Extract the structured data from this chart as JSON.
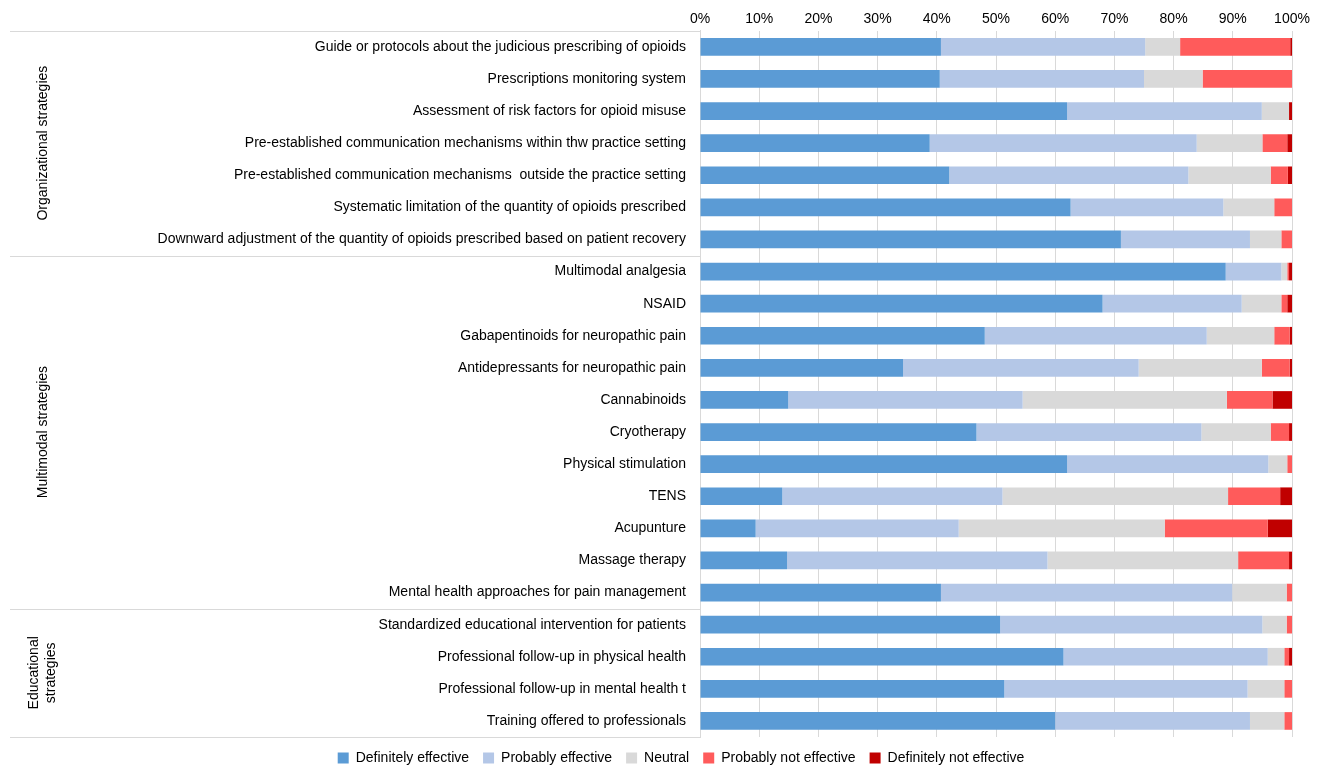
{
  "chart_data": {
    "type": "bar",
    "orientation": "horizontal",
    "stacked": true,
    "categories": [
      "Guide or protocols about the judicious prescribing of opioids",
      "Prescriptions monitoring system",
      "Assessment of risk factors for opioid misuse",
      "Pre-established communication mechanisms within thw practice setting",
      "Pre-established communication mechanisms  outside the practice setting",
      "Systematic limitation of the quantity of opioids prescribed",
      "Downward adjustment of the quantity of opioids prescribed based on patient recovery",
      "Multimodal analgesia",
      "NSAID",
      "Gabapentinoids for neuropathic pain",
      "Antidepressants for neuropathic pain",
      "Cannabinoids",
      "Cryotherapy",
      "Physical stimulation",
      "TENS",
      "Acupunture",
      "Massage therapy",
      "Mental health approaches for pain management",
      "Standardized educational intervention for patients",
      "Professional follow-up in physical health",
      "Professional follow-up in mental health t",
      "Training offered to professionals"
    ],
    "series": [
      {
        "name": "Definitely effective",
        "color": "#5b9bd5",
        "values": [
          40.7,
          40.5,
          62.0,
          38.8,
          42.1,
          62.6,
          71.1,
          88.8,
          68.0,
          48.1,
          34.3,
          14.9,
          46.7,
          62.0,
          13.9,
          9.4,
          14.7,
          40.7,
          50.7,
          61.4,
          51.4,
          60.0
        ]
      },
      {
        "name": "Probably effective",
        "color": "#b4c7e7",
        "values": [
          34.5,
          34.5,
          32.9,
          45.1,
          40.4,
          25.8,
          21.8,
          9.4,
          23.5,
          37.5,
          39.8,
          39.6,
          38.0,
          34.0,
          37.2,
          34.3,
          44.0,
          49.2,
          44.3,
          34.5,
          41.1,
          32.9
        ]
      },
      {
        "name": "Neutral",
        "color": "#d9d9d9",
        "values": [
          5.9,
          9.9,
          4.6,
          11.1,
          13.9,
          8.6,
          5.3,
          1.0,
          6.7,
          11.4,
          20.8,
          34.5,
          11.7,
          3.2,
          38.1,
          34.8,
          32.2,
          9.2,
          4.1,
          2.8,
          6.2,
          5.8
        ]
      },
      {
        "name": "Probably not effective",
        "color": "#ff5b5b",
        "values": [
          18.6,
          15.1,
          0,
          4.2,
          2.9,
          3.0,
          1.8,
          0.3,
          1.0,
          2.6,
          4.7,
          7.7,
          3.1,
          0.8,
          8.8,
          17.4,
          8.6,
          0.9,
          0.9,
          0.8,
          1.3,
          1.3
        ]
      },
      {
        "name": "Definitely not effective",
        "color": "#c00000",
        "values": [
          0.3,
          0,
          0.5,
          0.8,
          0.7,
          0,
          0,
          0.5,
          0.8,
          0.4,
          0.4,
          3.3,
          0.5,
          0,
          2.0,
          4.1,
          0.5,
          0,
          0,
          0.5,
          0,
          0
        ]
      }
    ],
    "xlim": [
      0,
      100
    ],
    "xticks": [
      {
        "value": 0,
        "label": "0%"
      },
      {
        "value": 10,
        "label": "10%"
      },
      {
        "value": 20,
        "label": "20%"
      },
      {
        "value": 30,
        "label": "30%"
      },
      {
        "value": 40,
        "label": "40%"
      },
      {
        "value": 50,
        "label": "50%"
      },
      {
        "value": 60,
        "label": "60%"
      },
      {
        "value": 70,
        "label": "70%"
      },
      {
        "value": 80,
        "label": "80%"
      },
      {
        "value": 90,
        "label": "90%"
      },
      {
        "value": 100,
        "label": "100%"
      }
    ],
    "grid": "x",
    "legend": "bottom",
    "annotations": [
      "Organizational strategies",
      "Multimodal strategies",
      "Educational strategies"
    ]
  }
}
